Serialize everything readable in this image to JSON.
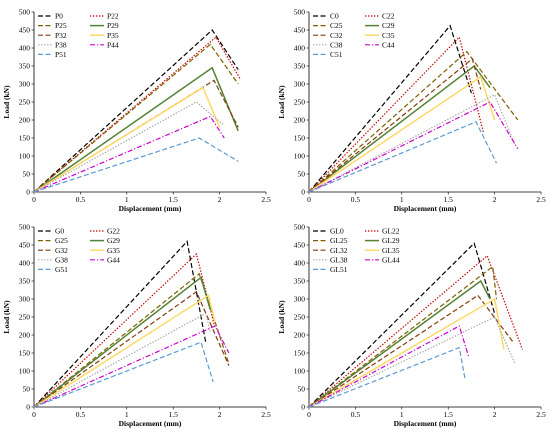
{
  "figure": {
    "panels": 4
  },
  "chart_data": [
    {
      "type": "line",
      "xlabel": "Displacement (mm)",
      "ylabel": "Load (kN)",
      "xlim": [
        0,
        2.5
      ],
      "ylim": [
        0,
        500
      ],
      "xticks": [
        "0",
        "0.5",
        "1",
        "1.5",
        "2",
        "2.5"
      ],
      "yticks": [
        "0",
        "50",
        "100",
        "150",
        "200",
        "250",
        "300",
        "350",
        "400",
        "450",
        "500"
      ],
      "grid": false,
      "legend": "top-left",
      "series": [
        {
          "name": "P0",
          "color": "#000000",
          "dash": "dashed",
          "x": [
            0,
            1.92,
            2.2
          ],
          "y": [
            0,
            450,
            340
          ]
        },
        {
          "name": "P22",
          "color": "#c00000",
          "dash": "dotted",
          "x": [
            0,
            1.96,
            2.22
          ],
          "y": [
            0,
            430,
            315
          ]
        },
        {
          "name": "P25",
          "color": "#7f6000",
          "dash": "dashed",
          "x": [
            0,
            1.9,
            2.2
          ],
          "y": [
            0,
            410,
            300
          ]
        },
        {
          "name": "P29",
          "color": "#548235",
          "dash": "solid",
          "x": [
            0,
            1.92,
            2.2
          ],
          "y": [
            0,
            345,
            170
          ]
        },
        {
          "name": "P32",
          "color": "#843c0c",
          "dash": "dashed",
          "x": [
            0,
            1.94,
            2.2
          ],
          "y": [
            0,
            310,
            180
          ]
        },
        {
          "name": "P35",
          "color": "#ffd966",
          "dash": "solid",
          "x": [
            0,
            1.82,
            2.0
          ],
          "y": [
            0,
            290,
            180
          ]
        },
        {
          "name": "P38",
          "color": "#a6a6a6",
          "dash": "dotted",
          "x": [
            0,
            1.75,
            2.05
          ],
          "y": [
            0,
            250,
            185
          ]
        },
        {
          "name": "P44",
          "color": "#cc00cc",
          "dash": "dashdot",
          "x": [
            0,
            1.9,
            2.05
          ],
          "y": [
            0,
            210,
            150
          ]
        },
        {
          "name": "P51",
          "color": "#5b9bd5",
          "dash": "dashed",
          "x": [
            0,
            1.78,
            2.2
          ],
          "y": [
            0,
            150,
            85
          ]
        }
      ]
    },
    {
      "type": "line",
      "xlabel": "Displacement (mm)",
      "ylabel": "Load (kN)",
      "xlim": [
        0,
        2.5
      ],
      "ylim": [
        0,
        500
      ],
      "xticks": [
        "0",
        "0.5",
        "1",
        "1.5",
        "2",
        "2.5"
      ],
      "yticks": [
        "0",
        "50",
        "100",
        "150",
        "200",
        "250",
        "300",
        "350",
        "400",
        "450",
        "500"
      ],
      "grid": false,
      "legend": "top-left",
      "series": [
        {
          "name": "C0",
          "color": "#000000",
          "dash": "dashed",
          "x": [
            0,
            1.52,
            1.75
          ],
          "y": [
            0,
            462,
            275
          ]
        },
        {
          "name": "C22",
          "color": "#c00000",
          "dash": "dotted",
          "x": [
            0,
            1.62,
            1.88
          ],
          "y": [
            0,
            430,
            165
          ]
        },
        {
          "name": "C25",
          "color": "#7f6000",
          "dash": "dashed",
          "x": [
            0,
            1.7,
            2.25
          ],
          "y": [
            0,
            390,
            200
          ]
        },
        {
          "name": "C29",
          "color": "#548235",
          "dash": "solid",
          "x": [
            0,
            1.78,
            1.95
          ],
          "y": [
            0,
            350,
            290
          ]
        },
        {
          "name": "C32",
          "color": "#843c0c",
          "dash": "dashed",
          "x": [
            0,
            1.76,
            1.85
          ],
          "y": [
            0,
            370,
            285
          ]
        },
        {
          "name": "C35",
          "color": "#ffd966",
          "dash": "solid",
          "x": [
            0,
            1.85,
            2.0
          ],
          "y": [
            0,
            320,
            200
          ]
        },
        {
          "name": "C38",
          "color": "#a6a6a6",
          "dash": "dotted",
          "x": [
            0,
            2.0,
            2.22
          ],
          "y": [
            0,
            270,
            130
          ]
        },
        {
          "name": "C44",
          "color": "#cc00cc",
          "dash": "dashdot",
          "x": [
            0,
            1.95,
            2.25
          ],
          "y": [
            0,
            250,
            120
          ]
        },
        {
          "name": "C51",
          "color": "#5b9bd5",
          "dash": "dashed",
          "x": [
            0,
            1.8,
            2.02
          ],
          "y": [
            0,
            195,
            80
          ]
        }
      ]
    },
    {
      "type": "line",
      "xlabel": "Displacement (mm)",
      "ylabel": "Load (kN)",
      "xlim": [
        0,
        2.5
      ],
      "ylim": [
        0,
        500
      ],
      "xticks": [
        "0",
        "0.5",
        "1",
        "1.5",
        "2",
        "2.5"
      ],
      "yticks": [
        "0",
        "50",
        "100",
        "150",
        "200",
        "250",
        "300",
        "350",
        "400",
        "450",
        "500"
      ],
      "grid": false,
      "legend": "top-left",
      "series": [
        {
          "name": "G0",
          "color": "#000000",
          "dash": "dashed",
          "x": [
            0,
            1.65,
            1.85
          ],
          "y": [
            0,
            460,
            180
          ]
        },
        {
          "name": "G22",
          "color": "#c00000",
          "dash": "dotted",
          "x": [
            0,
            1.75,
            1.95
          ],
          "y": [
            0,
            425,
            220
          ]
        },
        {
          "name": "G25",
          "color": "#7f6000",
          "dash": "dashed",
          "x": [
            0,
            1.78,
            2.1
          ],
          "y": [
            0,
            370,
            120
          ]
        },
        {
          "name": "G29",
          "color": "#548235",
          "dash": "solid",
          "x": [
            0,
            1.8,
            1.9
          ],
          "y": [
            0,
            360,
            270
          ]
        },
        {
          "name": "G32",
          "color": "#843c0c",
          "dash": "dashed",
          "x": [
            0,
            1.75,
            2.1
          ],
          "y": [
            0,
            320,
            115
          ]
        },
        {
          "name": "G35",
          "color": "#ffd966",
          "dash": "solid",
          "x": [
            0,
            1.88,
            1.95
          ],
          "y": [
            0,
            310,
            235
          ]
        },
        {
          "name": "G38",
          "color": "#a6a6a6",
          "dash": "dotted",
          "x": [
            0,
            1.85,
            1.9
          ],
          "y": [
            0,
            260,
            210
          ]
        },
        {
          "name": "G44",
          "color": "#cc00cc",
          "dash": "dashdot",
          "x": [
            0,
            1.95,
            2.1
          ],
          "y": [
            0,
            225,
            150
          ]
        },
        {
          "name": "G51",
          "color": "#5b9bd5",
          "dash": "dashed",
          "x": [
            0,
            1.8,
            1.93
          ],
          "y": [
            0,
            180,
            70
          ]
        }
      ]
    },
    {
      "type": "line",
      "xlabel": "Displacement (mm)",
      "ylabel": "Load (kN)",
      "xlim": [
        0,
        2.5
      ],
      "ylim": [
        0,
        500
      ],
      "xticks": [
        "0",
        "0.5",
        "1",
        "1.5",
        "2",
        "2.5"
      ],
      "yticks": [
        "0",
        "50",
        "100",
        "150",
        "200",
        "250",
        "300",
        "350",
        "400",
        "450",
        "500"
      ],
      "grid": false,
      "legend": "top-left",
      "series": [
        {
          "name": "GL0",
          "color": "#000000",
          "dash": "dashed",
          "x": [
            0,
            1.78,
            2.0
          ],
          "y": [
            0,
            455,
            260
          ]
        },
        {
          "name": "GL22",
          "color": "#c00000",
          "dash": "dotted",
          "x": [
            0,
            1.92,
            2.3
          ],
          "y": [
            0,
            420,
            160
          ]
        },
        {
          "name": "GL25",
          "color": "#7f6000",
          "dash": "dashed",
          "x": [
            0,
            1.98,
            2.02
          ],
          "y": [
            0,
            390,
            300
          ]
        },
        {
          "name": "GL29",
          "color": "#548235",
          "dash": "solid",
          "x": [
            0,
            1.85,
            1.95
          ],
          "y": [
            0,
            350,
            300
          ]
        },
        {
          "name": "GL32",
          "color": "#843c0c",
          "dash": "dashed",
          "x": [
            0,
            1.82,
            2.2
          ],
          "y": [
            0,
            310,
            180
          ]
        },
        {
          "name": "GL35",
          "color": "#ffd966",
          "dash": "solid",
          "x": [
            0,
            2.0,
            2.1
          ],
          "y": [
            0,
            300,
            160
          ]
        },
        {
          "name": "GL38",
          "color": "#a6a6a6",
          "dash": "dotted",
          "x": [
            0,
            2.0,
            2.22
          ],
          "y": [
            0,
            250,
            120
          ]
        },
        {
          "name": "GL44",
          "color": "#cc00cc",
          "dash": "dashdot",
          "x": [
            0,
            1.62,
            1.72
          ],
          "y": [
            0,
            225,
            140
          ]
        },
        {
          "name": "GL51",
          "color": "#5b9bd5",
          "dash": "dashed",
          "x": [
            0,
            1.62,
            1.68
          ],
          "y": [
            0,
            165,
            80
          ]
        }
      ]
    }
  ]
}
